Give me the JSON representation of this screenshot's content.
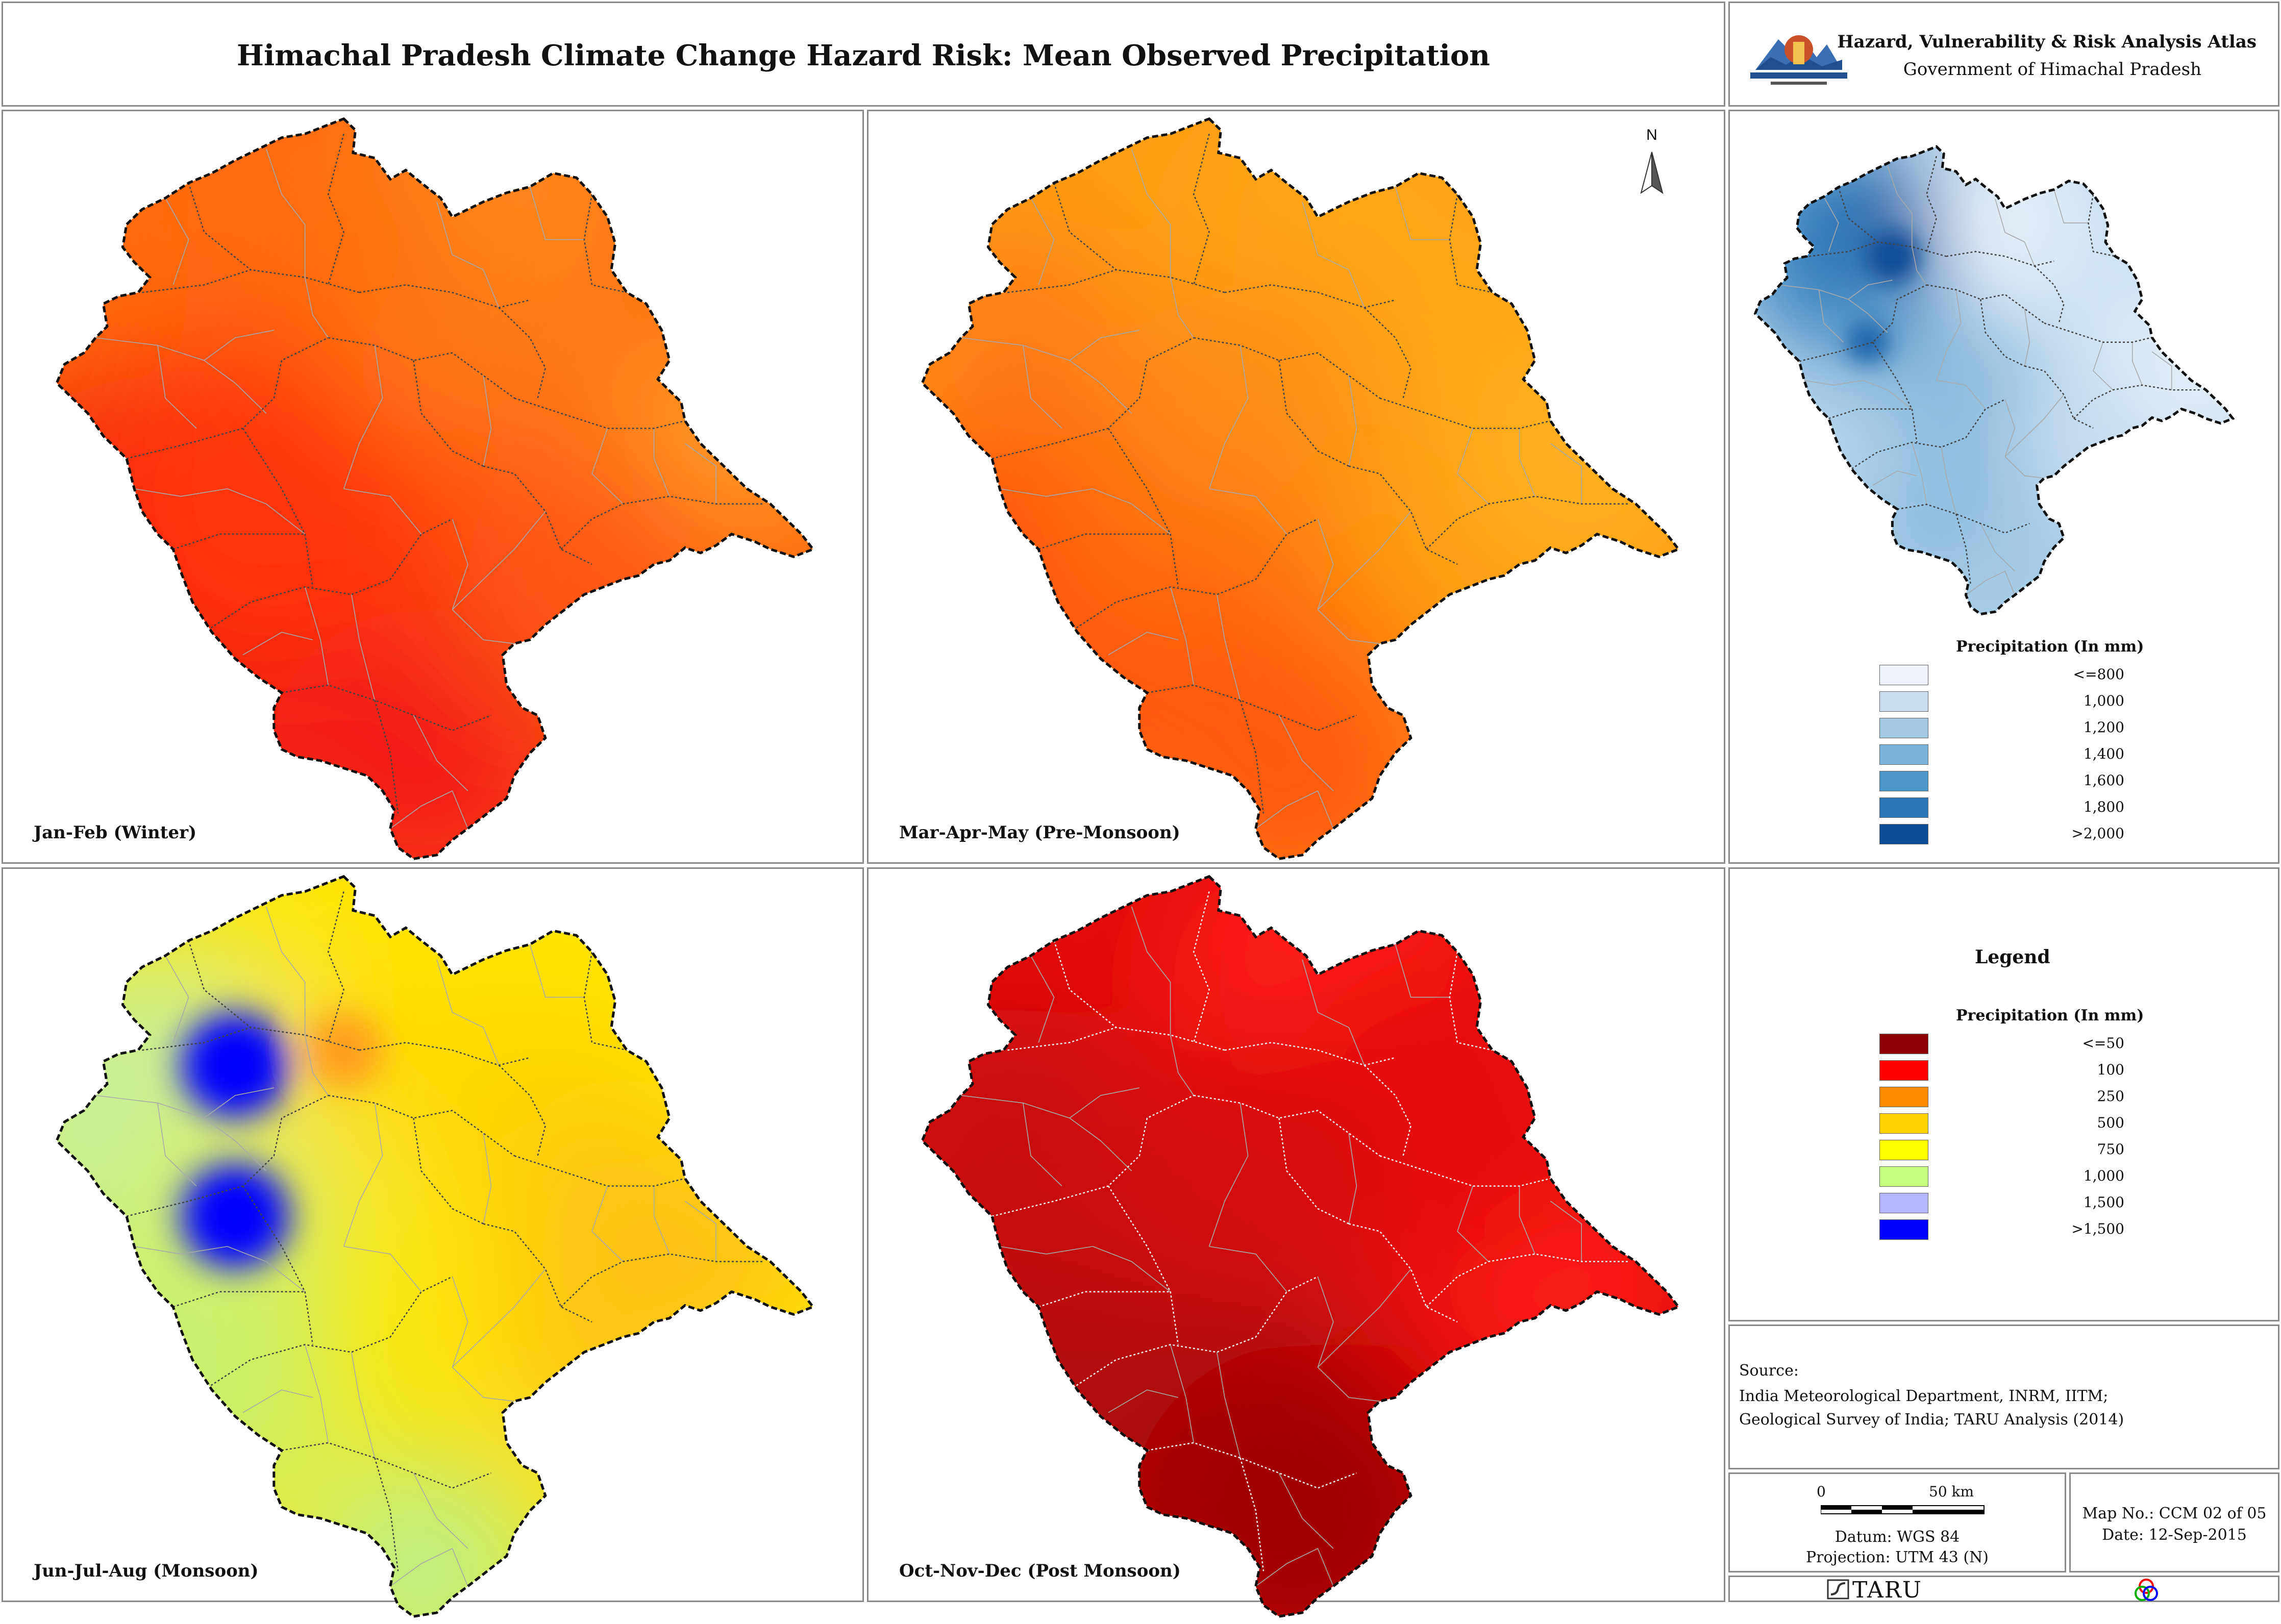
{
  "header": {
    "title": "Himachal Pradesh Climate Change Hazard Risk: Mean Observed Precipitation",
    "atlas_title": "Hazard, Vulnerability & Risk Analysis Atlas",
    "government": "Government of Himachal Pradesh",
    "logo_icon": "hp-government-emblem-icon"
  },
  "maps": [
    {
      "label": "Jan-Feb (Winter)",
      "palette": "winter"
    },
    {
      "label": "Mar-Apr-May (Pre-Monsoon)",
      "palette": "premonsoon"
    },
    {
      "label": "Jun-Jul-Aug (Monsoon)",
      "palette": "monsoon"
    },
    {
      "label": "Oct-Nov-Dec (Post Monsoon)",
      "palette": "postmonsoon"
    }
  ],
  "north_arrow": {
    "label": "N"
  },
  "annual_legend": {
    "title": "Precipitation (In mm)",
    "items": [
      {
        "label": "<=800",
        "color": "#eef3fb"
      },
      {
        "label": "1,000",
        "color": "#c9ddef"
      },
      {
        "label": "1,200",
        "color": "#a3c9e3"
      },
      {
        "label": "1,400",
        "color": "#7ab3da"
      },
      {
        "label": "1,600",
        "color": "#4d96cc"
      },
      {
        "label": "1,800",
        "color": "#2a76b8"
      },
      {
        "label": ">2,000",
        "color": "#0d4d97"
      }
    ]
  },
  "seasonal_legend": {
    "heading": "Legend",
    "title": "Precipitation (In mm)",
    "items": [
      {
        "label": "<=50",
        "color": "#8b0000"
      },
      {
        "label": "100",
        "color": "#ff0000"
      },
      {
        "label": "250",
        "color": "#ff8c00"
      },
      {
        "label": "500",
        "color": "#ffd200"
      },
      {
        "label": "750",
        "color": "#ffff00"
      },
      {
        "label": "1,000",
        "color": "#c4ff80"
      },
      {
        "label": "1,500",
        "color": "#b4b4ff"
      },
      {
        "label": ">1,500",
        "color": "#0000ff"
      }
    ]
  },
  "source": {
    "heading": "Source:",
    "line1": "India Meteorological Department, INRM, IITM;",
    "line2": "Geological Survey of India; TARU Analysis (2014)"
  },
  "scale": {
    "start": "0",
    "end": "50 km",
    "datum": "Datum: WGS 84",
    "projection": "Projection: UTM 43 (N)"
  },
  "map_info": {
    "map_no": "Map No.: CCM 02 of 05",
    "date": "Date: 12-Sep-2015"
  },
  "footer": {
    "taru_logo": "TARU",
    "color_wheel_icon": "rgb-circles-icon"
  }
}
